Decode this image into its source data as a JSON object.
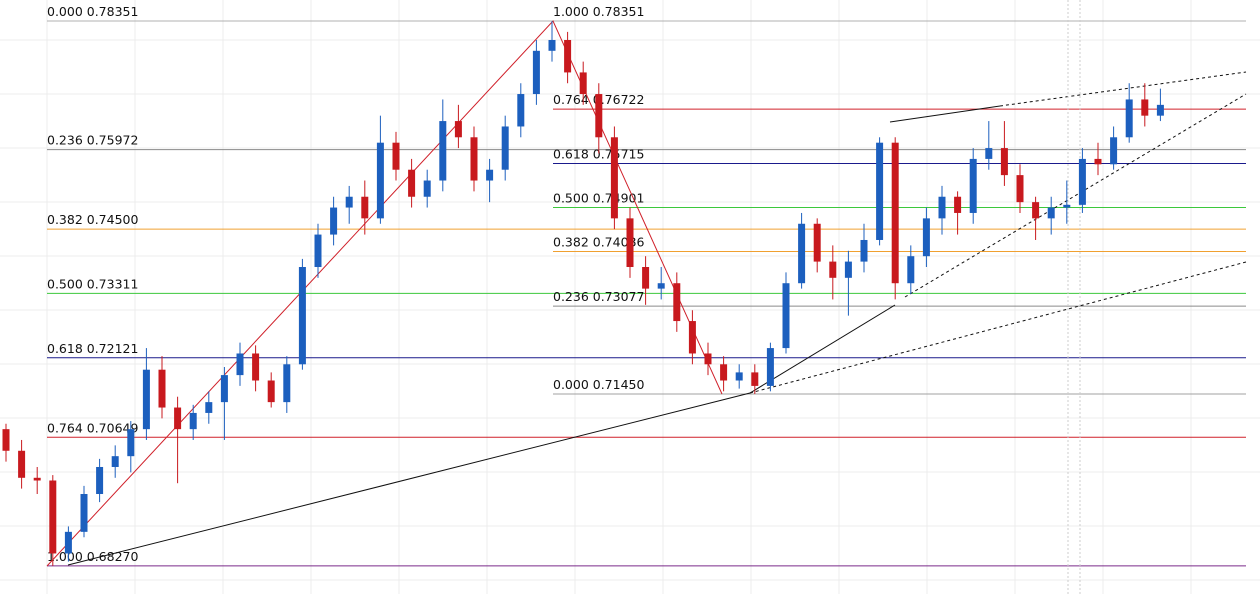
{
  "chart_data": {
    "type": "candlestick",
    "up_color": "#1c5fbe",
    "down_color": "#c8191e",
    "ylim": [
      0.6775,
      0.7874
    ],
    "grid": true,
    "candles": [
      [
        0.708,
        0.709,
        0.702,
        0.704
      ],
      [
        0.704,
        0.706,
        0.697,
        0.699
      ],
      [
        0.699,
        0.701,
        0.696,
        0.6985
      ],
      [
        0.6985,
        0.6995,
        0.6827,
        0.685
      ],
      [
        0.685,
        0.69,
        0.6835,
        0.689
      ],
      [
        0.689,
        0.6975,
        0.688,
        0.696
      ],
      [
        0.696,
        0.7025,
        0.6945,
        0.701
      ],
      [
        0.701,
        0.705,
        0.699,
        0.703
      ],
      [
        0.703,
        0.7095,
        0.7,
        0.708
      ],
      [
        0.708,
        0.723,
        0.706,
        0.719
      ],
      [
        0.719,
        0.7215,
        0.71,
        0.712
      ],
      [
        0.712,
        0.714,
        0.698,
        0.708
      ],
      [
        0.708,
        0.7125,
        0.706,
        0.711
      ],
      [
        0.711,
        0.715,
        0.709,
        0.713
      ],
      [
        0.713,
        0.7195,
        0.706,
        0.718
      ],
      [
        0.718,
        0.724,
        0.716,
        0.722
      ],
      [
        0.722,
        0.7235,
        0.715,
        0.717
      ],
      [
        0.717,
        0.7185,
        0.712,
        0.713
      ],
      [
        0.713,
        0.7215,
        0.711,
        0.72
      ],
      [
        0.72,
        0.7395,
        0.719,
        0.738
      ],
      [
        0.738,
        0.746,
        0.736,
        0.744
      ],
      [
        0.744,
        0.751,
        0.742,
        0.749
      ],
      [
        0.749,
        0.753,
        0.746,
        0.751
      ],
      [
        0.751,
        0.754,
        0.744,
        0.747
      ],
      [
        0.747,
        0.766,
        0.746,
        0.761
      ],
      [
        0.761,
        0.763,
        0.754,
        0.756
      ],
      [
        0.756,
        0.758,
        0.749,
        0.751
      ],
      [
        0.751,
        0.756,
        0.749,
        0.754
      ],
      [
        0.754,
        0.769,
        0.752,
        0.765
      ],
      [
        0.765,
        0.768,
        0.76,
        0.762
      ],
      [
        0.762,
        0.764,
        0.752,
        0.754
      ],
      [
        0.754,
        0.758,
        0.75,
        0.756
      ],
      [
        0.756,
        0.766,
        0.754,
        0.764
      ],
      [
        0.764,
        0.772,
        0.762,
        0.77
      ],
      [
        0.77,
        0.78,
        0.768,
        0.778
      ],
      [
        0.778,
        0.7835,
        0.776,
        0.78
      ],
      [
        0.78,
        0.7815,
        0.772,
        0.774
      ],
      [
        0.774,
        0.776,
        0.768,
        0.77
      ],
      [
        0.77,
        0.772,
        0.759,
        0.762
      ],
      [
        0.762,
        0.764,
        0.745,
        0.747
      ],
      [
        0.747,
        0.749,
        0.736,
        0.738
      ],
      [
        0.738,
        0.74,
        0.731,
        0.734
      ],
      [
        0.734,
        0.738,
        0.732,
        0.735
      ],
      [
        0.735,
        0.737,
        0.726,
        0.728
      ],
      [
        0.728,
        0.73,
        0.72,
        0.722
      ],
      [
        0.722,
        0.724,
        0.718,
        0.72
      ],
      [
        0.72,
        0.7215,
        0.715,
        0.717
      ],
      [
        0.717,
        0.72,
        0.7155,
        0.7185
      ],
      [
        0.7185,
        0.72,
        0.7145,
        0.716
      ],
      [
        0.716,
        0.724,
        0.715,
        0.723
      ],
      [
        0.723,
        0.737,
        0.722,
        0.735
      ],
      [
        0.735,
        0.748,
        0.734,
        0.746
      ],
      [
        0.746,
        0.747,
        0.737,
        0.739
      ],
      [
        0.739,
        0.742,
        0.732,
        0.736
      ],
      [
        0.736,
        0.741,
        0.729,
        0.739
      ],
      [
        0.739,
        0.746,
        0.737,
        0.743
      ],
      [
        0.743,
        0.762,
        0.742,
        0.761
      ],
      [
        0.761,
        0.762,
        0.732,
        0.735
      ],
      [
        0.735,
        0.742,
        0.733,
        0.74
      ],
      [
        0.74,
        0.749,
        0.738,
        0.747
      ],
      [
        0.747,
        0.753,
        0.744,
        0.751
      ],
      [
        0.751,
        0.752,
        0.744,
        0.748
      ],
      [
        0.748,
        0.76,
        0.746,
        0.758
      ],
      [
        0.758,
        0.765,
        0.756,
        0.76
      ],
      [
        0.76,
        0.765,
        0.753,
        0.755
      ],
      [
        0.755,
        0.757,
        0.748,
        0.75
      ],
      [
        0.75,
        0.751,
        0.743,
        0.747
      ],
      [
        0.747,
        0.751,
        0.744,
        0.749
      ],
      [
        0.749,
        0.754,
        0.746,
        0.7495
      ],
      [
        0.7495,
        0.76,
        0.748,
        0.758
      ],
      [
        0.758,
        0.761,
        0.755,
        0.757
      ],
      [
        0.757,
        0.764,
        0.756,
        0.762
      ],
      [
        0.762,
        0.772,
        0.761,
        0.769
      ],
      [
        0.769,
        0.772,
        0.764,
        0.766
      ],
      [
        0.766,
        0.771,
        0.765,
        0.768
      ]
    ],
    "fib_left": [
      {
        "value": 0.78351,
        "label": "0.000 0.78351",
        "color": "#b0b0b0"
      },
      {
        "value": 0.75972,
        "label": "0.236 0.75972",
        "color": "#8a8a8a"
      },
      {
        "value": 0.745,
        "label": "0.382 0.74500",
        "color": "#f0a030"
      },
      {
        "value": 0.73311,
        "label": "0.500 0.73311",
        "color": "#3cc83c"
      },
      {
        "value": 0.72121,
        "label": "0.618 0.72121",
        "color": "#1a1a8c"
      },
      {
        "value": 0.70649,
        "label": "0.764 0.70649",
        "color": "#d0202a"
      },
      {
        "value": 0.6827,
        "label": "1.000 0.68270",
        "color": "#7a2a8a"
      }
    ],
    "fib_right": [
      {
        "value": 0.78351,
        "label": "1.000 0.78351",
        "color": "#b0b0b0"
      },
      {
        "value": 0.76722,
        "label": "0.764 0.76722",
        "color": "#d0202a"
      },
      {
        "value": 0.75715,
        "label": "0.618 0.75715",
        "color": "#1a1a8c"
      },
      {
        "value": 0.74901,
        "label": "0.500 0.74901",
        "color": "#3cc83c"
      },
      {
        "value": 0.74086,
        "label": "0.382 0.74086",
        "color": "#f0a030"
      },
      {
        "value": 0.73077,
        "label": "0.236 0.73077",
        "color": "#8a8a8a"
      },
      {
        "value": 0.7145,
        "label": "0.000 0.71450",
        "color": "#a0a0a0"
      }
    ]
  }
}
